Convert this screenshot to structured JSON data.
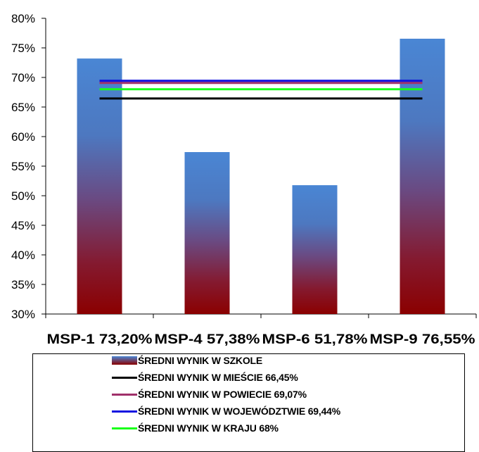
{
  "chart_data": {
    "type": "bar",
    "categories": [
      "MSP-1 73,20%",
      "MSP-4 57,38%",
      "MSP-6 51,78%",
      "MSP-9 76,55%"
    ],
    "series": [
      {
        "name": "ŚREDNI WYNIK W SZKOLE",
        "kind": "bar",
        "color_top": "#4a86d4",
        "color_bottom": "#8b0000",
        "values": [
          73.2,
          57.38,
          51.78,
          76.55
        ]
      },
      {
        "name": "ŚREDNI WYNIK W MIEŚCIE 66,45%",
        "kind": "line",
        "color": "#000000",
        "value": 66.45
      },
      {
        "name": "ŚREDNI WYNIK W POWIECIE 69,07%",
        "kind": "line",
        "color": "#a0306a",
        "value": 69.07
      },
      {
        "name": "ŚREDNI WYNIK W WOJEWÓDZTWIE 69,44%",
        "kind": "line",
        "color": "#1010e0",
        "value": 69.44
      },
      {
        "name": "ŚREDNI WYNIK W KRAJU 68%",
        "kind": "line",
        "color": "#1aff1a",
        "value": 68
      }
    ],
    "yticks": [
      "30%",
      "35%",
      "40%",
      "45%",
      "50%",
      "55%",
      "60%",
      "65%",
      "70%",
      "75%",
      "80%"
    ],
    "ylim": [
      30,
      80
    ],
    "grid": false,
    "legend_position": "bottom"
  }
}
